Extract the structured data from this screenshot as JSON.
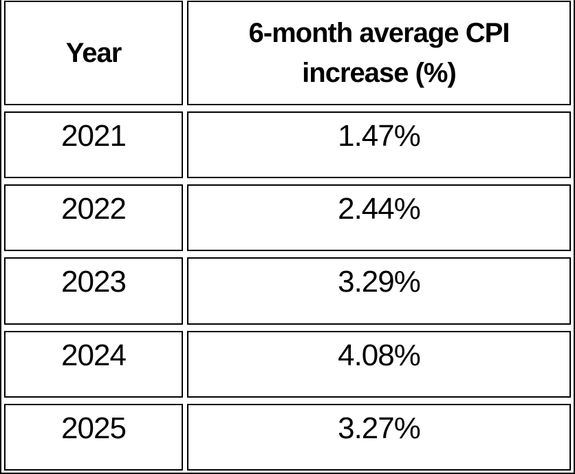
{
  "page": {
    "background": "#ffffff",
    "border_color": "#000000",
    "text_color": "#000000"
  },
  "table": {
    "header": {
      "col1": "Year",
      "col2": "6-month average CPI increase (%)"
    },
    "rows": [
      {
        "year": "2021",
        "cpi": "1.47%"
      },
      {
        "year": "2022",
        "cpi": "2.44%"
      },
      {
        "year": "2023",
        "cpi": "3.29%"
      },
      {
        "year": "2024",
        "cpi": "4.08%"
      },
      {
        "year": "2025",
        "cpi": "3.27%"
      }
    ]
  },
  "chart_data": {
    "type": "table",
    "columns": [
      "Year",
      "6-month average CPI increase (%)"
    ],
    "categories": [
      "2021",
      "2022",
      "2023",
      "2024",
      "2025"
    ],
    "values": [
      1.47,
      2.44,
      3.29,
      4.08,
      3.27
    ],
    "value_unit": "percent"
  }
}
